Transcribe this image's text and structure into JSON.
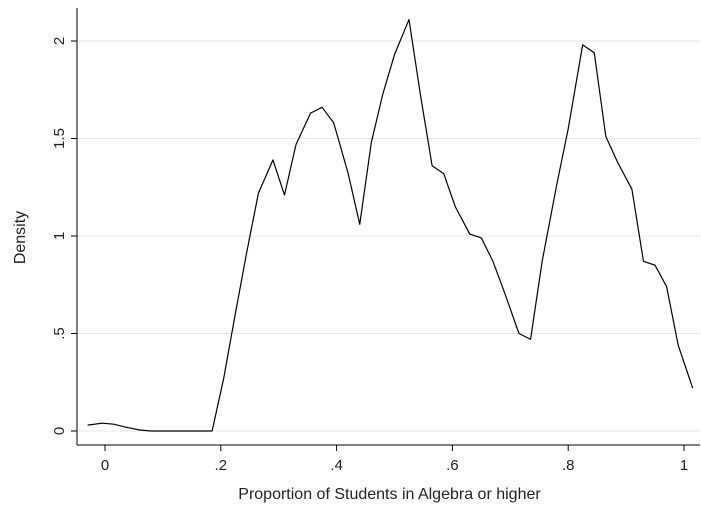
{
  "chart_data": {
    "type": "line",
    "title": "",
    "xlabel": "Proportion of Students in Algebra or higher",
    "ylabel": "Density",
    "xlim": [
      -0.05,
      1.02
    ],
    "ylim": [
      0,
      2.2
    ],
    "xticks": [
      0,
      0.2,
      0.4,
      0.6,
      0.8,
      1
    ],
    "xtick_labels": [
      "0",
      ".2",
      ".4",
      ".6",
      ".8",
      "1"
    ],
    "yticks": [
      0,
      0.5,
      1,
      1.5,
      2
    ],
    "ytick_labels": [
      "0",
      ".5",
      "1",
      "1.5",
      "2"
    ],
    "grid": "horizontal",
    "series": [
      {
        "color": "#000000",
        "x": [
          -0.03,
          -0.005,
          0.015,
          0.035,
          0.06,
          0.08,
          0.1,
          0.12,
          0.14,
          0.16,
          0.185,
          0.205,
          0.225,
          0.245,
          0.265,
          0.29,
          0.31,
          0.33,
          0.355,
          0.375,
          0.395,
          0.42,
          0.44,
          0.46,
          0.48,
          0.5,
          0.525,
          0.545,
          0.565,
          0.585,
          0.605,
          0.63,
          0.65,
          0.67,
          0.69,
          0.715,
          0.735,
          0.755,
          0.78,
          0.8,
          0.825,
          0.845,
          0.865,
          0.885,
          0.91,
          0.93,
          0.95,
          0.97,
          0.99,
          1.015
        ],
        "y": [
          0.03,
          0.04,
          0.035,
          0.02,
          0.005,
          0.0,
          0.0,
          0.0,
          0.0,
          0.0,
          0.0,
          0.27,
          0.6,
          0.92,
          1.22,
          1.39,
          1.21,
          1.47,
          1.63,
          1.66,
          1.58,
          1.32,
          1.06,
          1.48,
          1.73,
          1.93,
          2.11,
          1.72,
          1.36,
          1.32,
          1.15,
          1.01,
          0.99,
          0.87,
          0.71,
          0.5,
          0.47,
          0.87,
          1.26,
          1.55,
          1.98,
          1.94,
          1.51,
          1.38,
          1.24,
          0.87,
          0.85,
          0.74,
          0.44,
          0.22
        ]
      }
    ]
  }
}
